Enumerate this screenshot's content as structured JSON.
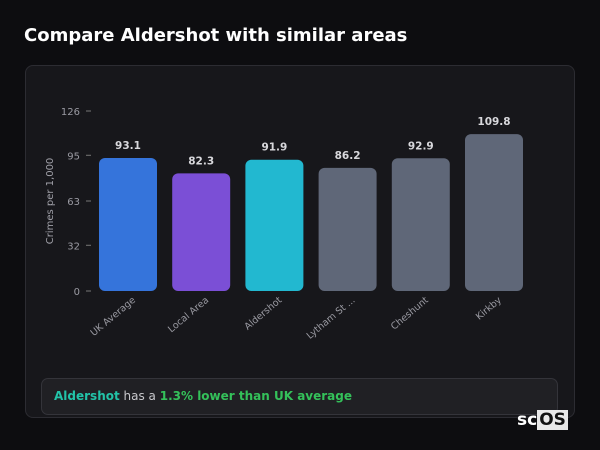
{
  "header": {
    "title": "Compare Aldershot with similar areas"
  },
  "chart_data": {
    "type": "bar",
    "categories": [
      "UK Average",
      "Local Area",
      "Aldershot",
      "Lytham St ...",
      "Cheshunt",
      "Kirkby"
    ],
    "values": [
      93.1,
      82.3,
      91.9,
      86.2,
      92.9,
      109.8
    ],
    "ylabel": "Crimes per 1,000",
    "xlabel": "",
    "ylim": [
      0,
      126
    ],
    "yticks": [
      0,
      32,
      63,
      95,
      126
    ],
    "colors": [
      "#3574db",
      "#7b4fd6",
      "#22b8d0",
      "#5f6778",
      "#5f6778",
      "#5f6778"
    ],
    "grid": false
  },
  "summary": {
    "area": "Aldershot",
    "middle": " has a ",
    "comparison": "1.3% lower than UK average"
  },
  "watermark": {
    "text": "scOS"
  }
}
